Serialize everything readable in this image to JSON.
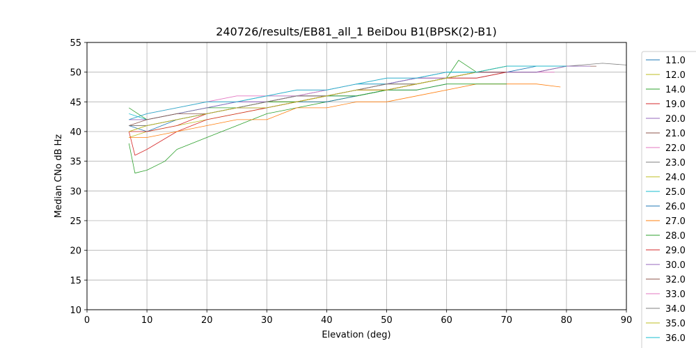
{
  "chart_data": {
    "type": "line",
    "title": "240726/results/EB81_all_1 BeiDou B1(BPSK(2)-B1)",
    "xlabel": "Elevation (deg)",
    "ylabel": "Median CNo dB Hz",
    "xlim": [
      0,
      90
    ],
    "ylim": [
      10,
      55
    ],
    "xticks": [
      0,
      10,
      20,
      30,
      40,
      50,
      60,
      70,
      80,
      90
    ],
    "yticks": [
      10,
      15,
      20,
      25,
      30,
      35,
      40,
      45,
      50,
      55
    ],
    "grid": true,
    "legend_position": "right (cut off)",
    "series": [
      {
        "name": "11.0",
        "color": "#1f77b4",
        "x": [
          7,
          10,
          15,
          20,
          25,
          30,
          35,
          40,
          45,
          50,
          55,
          60,
          65,
          70,
          75,
          80,
          82
        ],
        "y": [
          41,
          41,
          42,
          43,
          44,
          44,
          45,
          46,
          46,
          47,
          48,
          49,
          50,
          50,
          51,
          51,
          51
        ]
      },
      {
        "name": "12.0",
        "color": "#bcbd22",
        "x": [
          7,
          10,
          15,
          20,
          25,
          30,
          35,
          40,
          45,
          50,
          55,
          60,
          65,
          70
        ],
        "y": [
          39,
          40,
          41,
          42,
          43,
          44,
          45,
          45,
          46,
          47,
          48,
          49,
          50,
          51
        ]
      },
      {
        "name": "14.0",
        "color": "#2ca02c",
        "x": [
          7,
          8,
          10,
          13,
          15,
          20,
          25,
          30,
          35,
          40,
          45,
          50,
          55,
          60,
          62,
          65,
          70,
          75,
          80
        ],
        "y": [
          38,
          33,
          33.5,
          35,
          37,
          39,
          41,
          43,
          44,
          45,
          46,
          47,
          48,
          49,
          52,
          50,
          51,
          51,
          51
        ]
      },
      {
        "name": "19.0",
        "color": "#d62728",
        "x": [
          7,
          8,
          10,
          15,
          20,
          25,
          30,
          35,
          40,
          45,
          50,
          55,
          60,
          65,
          70
        ],
        "y": [
          40,
          36,
          37,
          40,
          42,
          43,
          44,
          45,
          46,
          47,
          47,
          48,
          49,
          50,
          50
        ]
      },
      {
        "name": "20.0",
        "color": "#9467bd",
        "x": [
          7,
          10,
          15,
          20,
          25,
          30,
          35,
          40,
          45,
          50,
          55,
          60,
          65,
          70,
          75,
          80
        ],
        "y": [
          42,
          42,
          43,
          44,
          45,
          45,
          46,
          47,
          48,
          48,
          49,
          50,
          50,
          51,
          51,
          51
        ]
      },
      {
        "name": "21.0",
        "color": "#8c564b",
        "x": [
          7,
          10,
          15,
          20,
          25,
          30,
          35,
          40,
          45,
          50,
          55,
          60,
          65,
          70,
          75,
          80,
          85
        ],
        "y": [
          41,
          41,
          42,
          43,
          44,
          45,
          46,
          46,
          47,
          48,
          49,
          49,
          50,
          50,
          50,
          51,
          51
        ]
      },
      {
        "name": "22.0",
        "color": "#e377c2",
        "x": [
          7,
          10,
          15,
          20,
          25,
          30,
          35,
          40,
          45,
          50,
          55,
          60,
          65,
          70,
          75,
          78
        ],
        "y": [
          42,
          43,
          44,
          45,
          46,
          46,
          47,
          47,
          48,
          48,
          49,
          49,
          50,
          50,
          50,
          50
        ]
      },
      {
        "name": "23.0",
        "color": "#7f7f7f",
        "x": [
          7,
          10,
          15,
          20,
          25,
          30,
          35,
          40,
          45,
          50,
          55,
          60,
          65,
          70,
          75,
          80,
          86,
          90
        ],
        "y": [
          41,
          41,
          42,
          43,
          44,
          45,
          45,
          46,
          47,
          47,
          48,
          49,
          49,
          50,
          50,
          51,
          51.5,
          51.2
        ]
      },
      {
        "name": "24.0",
        "color": "#bcbd22",
        "x": [
          7,
          10,
          15,
          20,
          25,
          30,
          35,
          40,
          45,
          50,
          55,
          60,
          65,
          70
        ],
        "y": [
          40,
          41,
          42,
          43,
          44,
          45,
          45,
          46,
          47,
          48,
          48,
          49,
          50,
          51
        ]
      },
      {
        "name": "25.0",
        "color": "#17becf",
        "x": [
          7,
          10,
          15,
          20,
          25,
          30,
          35,
          40,
          45,
          50,
          55,
          60,
          65,
          70,
          75,
          80
        ],
        "y": [
          43,
          42,
          43,
          44,
          45,
          46,
          46,
          47,
          48,
          48,
          49,
          50,
          50,
          51,
          51,
          51
        ]
      },
      {
        "name": "26.0",
        "color": "#1f77b4",
        "x": [
          7,
          10,
          15,
          20,
          25,
          30,
          35,
          40,
          45,
          50,
          55,
          60
        ],
        "y": [
          41,
          40,
          42,
          43,
          44,
          44,
          45,
          45,
          46,
          47,
          47,
          48
        ]
      },
      {
        "name": "27.0",
        "color": "#ff7f0e",
        "x": [
          7,
          10,
          15,
          20,
          25,
          30,
          35,
          40,
          45,
          50,
          55,
          60,
          65,
          70,
          75,
          79
        ],
        "y": [
          39,
          39,
          40,
          41,
          42,
          42,
          44,
          44,
          45,
          45,
          46,
          47,
          48,
          48,
          48,
          47.5
        ]
      },
      {
        "name": "28.0",
        "color": "#2ca02c",
        "x": [
          7,
          10,
          15,
          20,
          25,
          30,
          35,
          40,
          45,
          50,
          55,
          60,
          65,
          70
        ],
        "y": [
          44,
          42,
          43,
          44,
          44,
          45,
          45,
          46,
          46,
          47,
          47,
          48,
          48,
          48
        ]
      },
      {
        "name": "29.0",
        "color": "#d62728",
        "x": [
          7,
          10,
          15,
          20,
          25,
          30,
          35,
          40,
          45,
          50,
          55,
          60,
          65,
          70
        ],
        "y": [
          40,
          40,
          41,
          43,
          44,
          44,
          45,
          46,
          47,
          47,
          48,
          49,
          49,
          50
        ]
      },
      {
        "name": "30.0",
        "color": "#9467bd",
        "x": [
          7,
          10,
          15,
          20,
          25,
          30,
          35,
          40,
          45,
          50,
          55,
          60,
          65,
          70,
          75,
          80,
          84
        ],
        "y": [
          42,
          42,
          43,
          44,
          45,
          45,
          46,
          46,
          47,
          48,
          49,
          49,
          50,
          50,
          50,
          51,
          51
        ]
      },
      {
        "name": "32.0",
        "color": "#8c564b",
        "x": [
          7,
          10,
          15,
          20,
          25,
          30,
          35,
          40,
          45,
          50,
          55,
          60,
          65,
          70
        ],
        "y": [
          41,
          42,
          43,
          43,
          44,
          45,
          46,
          46,
          47,
          48,
          48,
          49,
          50,
          50
        ]
      },
      {
        "name": "33.0",
        "color": "#e377c2",
        "x": [
          7,
          10,
          15,
          20,
          25,
          30,
          35,
          40,
          45,
          50,
          55,
          60
        ],
        "y": [
          42,
          43,
          44,
          45,
          45,
          46,
          46,
          47,
          48,
          49,
          49,
          50
        ]
      },
      {
        "name": "34.0",
        "color": "#7f7f7f",
        "x": [
          7,
          10,
          15,
          20,
          25,
          30,
          35,
          40,
          45,
          50,
          55,
          60
        ],
        "y": [
          41,
          41,
          42,
          43,
          44,
          45,
          46,
          46,
          47,
          48,
          48,
          49
        ]
      },
      {
        "name": "35.0",
        "color": "#bcbd22",
        "x": [
          7,
          10,
          15,
          20,
          25,
          30,
          35,
          40,
          45,
          50,
          55,
          60,
          65,
          70
        ],
        "y": [
          40,
          41,
          42,
          43,
          44,
          44,
          45,
          46,
          47,
          47,
          48,
          49,
          50,
          51
        ]
      },
      {
        "name": "36.0",
        "color": "#17becf",
        "x": [
          7,
          10,
          15,
          20,
          25,
          30,
          35,
          40,
          45,
          50,
          55,
          60,
          65,
          70,
          75,
          80
        ],
        "y": [
          42,
          43,
          44,
          45,
          45,
          46,
          47,
          47,
          48,
          49,
          49,
          50,
          50,
          51,
          51,
          51
        ]
      }
    ]
  }
}
